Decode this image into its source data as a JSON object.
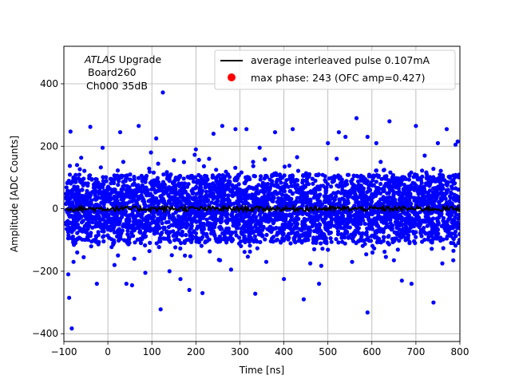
{
  "chart_data": {
    "type": "scatter",
    "xlabel": "Time [ns]",
    "ylabel": "Amplitude [ADC Counts]",
    "xlim": [
      -100,
      800
    ],
    "ylim": [
      -425,
      520
    ],
    "x_ticks": [
      -100,
      0,
      100,
      200,
      300,
      400,
      500,
      600,
      700,
      800
    ],
    "y_ticks": [
      -400,
      -200,
      0,
      200,
      400
    ],
    "grid": true,
    "legend_position": "top-right",
    "annotation": {
      "experiment": "ATLAS",
      "experiment_suffix": "Upgrade",
      "board": "Board260",
      "channel": "Ch000 35dB"
    },
    "series": [
      {
        "name": "average interleaved pulse 0.107mA",
        "kind": "line",
        "color": "#000000",
        "x_start": -95,
        "x_end": 800,
        "baseline": 0,
        "noise_amplitude": 8
      },
      {
        "name": "",
        "kind": "scatter",
        "color": "#0000ff",
        "x_start": -95,
        "x_end": 800,
        "center": 0,
        "sigma": 55,
        "band_dense": 110,
        "points": [
          [
            -85,
            247
          ],
          [
            -82,
            -383
          ],
          [
            -88,
            -285
          ],
          [
            -90,
            -210
          ],
          [
            -78,
            -170
          ],
          [
            -40,
            262
          ],
          [
            -25,
            -240
          ],
          [
            -12,
            195
          ],
          [
            15,
            -180
          ],
          [
            28,
            245
          ],
          [
            42,
            -240
          ],
          [
            55,
            -245
          ],
          [
            70,
            265
          ],
          [
            85,
            -205
          ],
          [
            98,
            180
          ],
          [
            110,
            225
          ],
          [
            125,
            372
          ],
          [
            120,
            -322
          ],
          [
            140,
            -200
          ],
          [
            165,
            -225
          ],
          [
            185,
            -260
          ],
          [
            200,
            190
          ],
          [
            215,
            -270
          ],
          [
            240,
            240
          ],
          [
            260,
            265
          ],
          [
            280,
            -195
          ],
          [
            290,
            255
          ],
          [
            315,
            255
          ],
          [
            335,
            -272
          ],
          [
            345,
            195
          ],
          [
            380,
            245
          ],
          [
            400,
            -225
          ],
          [
            420,
            255
          ],
          [
            445,
            -290
          ],
          [
            480,
            -240
          ],
          [
            500,
            210
          ],
          [
            525,
            245
          ],
          [
            540,
            230
          ],
          [
            565,
            290
          ],
          [
            590,
            230
          ],
          [
            590,
            -332
          ],
          [
            610,
            210
          ],
          [
            640,
            280
          ],
          [
            668,
            -230
          ],
          [
            690,
            -240
          ],
          [
            700,
            265
          ],
          [
            740,
            -300
          ],
          [
            750,
            210
          ],
          [
            770,
            255
          ],
          [
            790,
            205
          ],
          [
            785,
            -165
          ],
          [
            795,
            215
          ],
          [
            -70,
            140
          ],
          [
            -55,
            -155
          ],
          [
            35,
            150
          ],
          [
            60,
            -160
          ],
          [
            150,
            155
          ],
          [
            175,
            -150
          ],
          [
            230,
            160
          ],
          [
            255,
            -165
          ],
          [
            330,
            150
          ],
          [
            360,
            -170
          ],
          [
            430,
            165
          ],
          [
            460,
            -175
          ],
          [
            520,
            160
          ],
          [
            555,
            -170
          ],
          [
            620,
            150
          ],
          [
            650,
            -165
          ],
          [
            720,
            170
          ],
          [
            760,
            -175
          ]
        ]
      },
      {
        "name": "max phase: 243 (OFC amp=0.427)",
        "kind": "marker",
        "color": "#ff0000"
      }
    ]
  }
}
